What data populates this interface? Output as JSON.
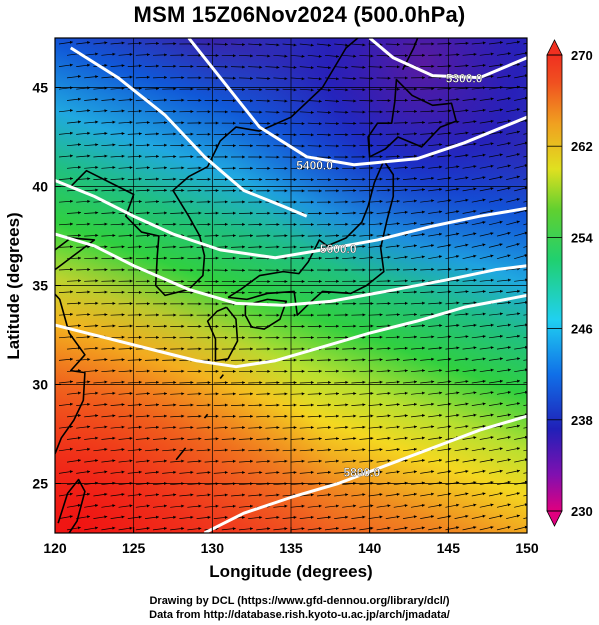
{
  "title": "MSM 15Z06Nov2024 (500.0hPa)",
  "map": {
    "xlabel": "Longitude (degrees)",
    "ylabel": "Latitude  (degrees)",
    "xlim": [
      120,
      150
    ],
    "ylim": [
      22.5,
      47.5
    ],
    "x_ticks": [
      "120",
      "125",
      "130",
      "135",
      "140",
      "145",
      "150"
    ],
    "y_ticks": [
      "25",
      "30",
      "35",
      "40",
      "45"
    ],
    "grid": true,
    "field": "temperature (K)",
    "vectors": "wind streamlines",
    "contours": [
      {
        "label": "5300.0",
        "lon": 146,
        "lat": 45.5
      },
      {
        "label": "5400.0",
        "lon": 136.5,
        "lat": 41.1
      },
      {
        "label": "5600.0",
        "lon": 138,
        "lat": 36.9
      },
      {
        "label": "5800.0",
        "lon": 139.5,
        "lat": 25.6
      }
    ]
  },
  "colorbar": {
    "ticks": [
      "270",
      "262",
      "254",
      "246",
      "238",
      "230"
    ],
    "range": [
      230,
      270
    ],
    "colors": [
      "#e0007f",
      "#2a1aa0",
      "#1060e0",
      "#20d0f0",
      "#20d070",
      "#60d030",
      "#d0e020",
      "#f0a020",
      "#f05020",
      "#f03020"
    ]
  },
  "credits": {
    "line1": "Drawing by DCL (https://www.gfd-dennou.org/library/dcl/)",
    "line2": "Data from http://database.rish.kyoto-u.ac.jp/arch/jmadata/"
  }
}
